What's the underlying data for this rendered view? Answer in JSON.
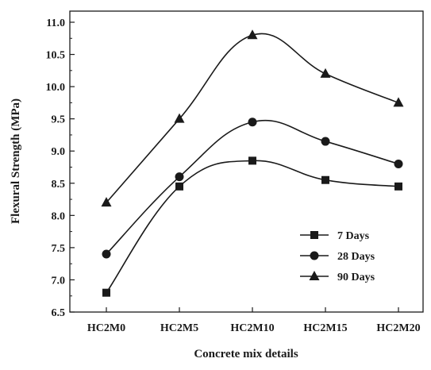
{
  "chart_data": {
    "type": "line",
    "title": "",
    "xlabel": "Concrete mix details",
    "ylabel": "Flexural Strength (MPa)",
    "categories": [
      "HC2M0",
      "HC2M5",
      "HC2M10",
      "HC2M15",
      "HC2M20"
    ],
    "ylim": [
      6.5,
      11.0
    ],
    "yticks": [
      "6.5",
      "7.0",
      "7.5",
      "8.0",
      "8.5",
      "9.0",
      "9.5",
      "10.0",
      "10.5",
      "11.0"
    ],
    "grid": false,
    "legend_position": "bottom-right",
    "series": [
      {
        "name": "7 Days",
        "marker": "square",
        "values": [
          6.8,
          8.45,
          8.85,
          8.55,
          8.45
        ]
      },
      {
        "name": "28 Days",
        "marker": "circle",
        "values": [
          7.4,
          8.6,
          9.45,
          9.15,
          8.8
        ]
      },
      {
        "name": "90 Days",
        "marker": "triangle",
        "values": [
          8.2,
          9.5,
          10.8,
          10.2,
          9.75
        ]
      }
    ],
    "line_color": "#1a1a1a"
  }
}
